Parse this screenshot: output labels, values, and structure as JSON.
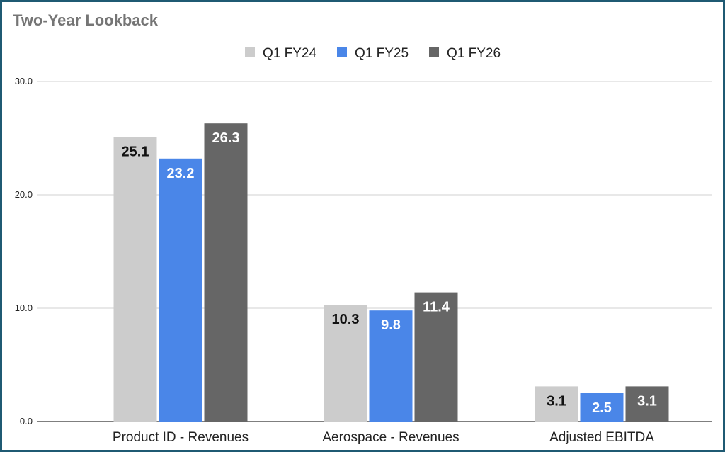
{
  "chart_data": {
    "type": "bar",
    "title": "Two-Year Lookback",
    "categories": [
      "Product ID - Revenues",
      "Aerospace - Revenues",
      "Adjusted EBITDA"
    ],
    "series": [
      {
        "name": "Q1 FY24",
        "values": [
          25.1,
          10.3,
          3.1
        ],
        "color": "#cccccc",
        "label_color": "#111111"
      },
      {
        "name": "Q1 FY25",
        "values": [
          23.2,
          9.8,
          2.5
        ],
        "color": "#4a86e8",
        "label_color": "#ffffff"
      },
      {
        "name": "Q1 FY26",
        "values": [
          26.3,
          11.4,
          3.1
        ],
        "color": "#666666",
        "label_color": "#ffffff"
      }
    ],
    "y_ticks": [
      "0.0",
      "10.0",
      "20.0",
      "30.0"
    ],
    "ylim": [
      0,
      30
    ],
    "grid": true,
    "legend_placement": "top",
    "data_labels": true
  }
}
